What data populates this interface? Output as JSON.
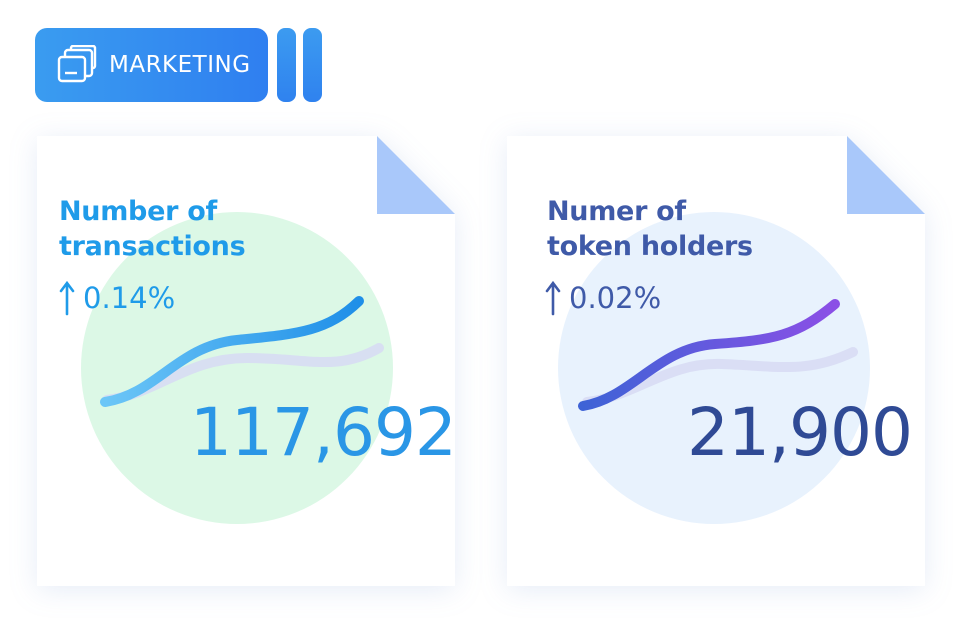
{
  "tag": {
    "label": "MARKETING",
    "icon": "stacked-windows-icon"
  },
  "cards": [
    {
      "title_line1": "Number of",
      "title_line2": "transactions",
      "change": "0.14%",
      "value": "117,692",
      "accent": "#1f9be9",
      "trend": "up"
    },
    {
      "title_line1": "Numer of",
      "title_line2": "token holders",
      "change": "0.02%",
      "value": "21,900",
      "accent": "#3f5aa8",
      "trend": "up"
    }
  ],
  "colors": {
    "tag_bg": "#2f86f0",
    "card1_circle": "#dcf8e6",
    "card2_circle": "#e8f2fd",
    "fold": "#a9c8fa"
  }
}
